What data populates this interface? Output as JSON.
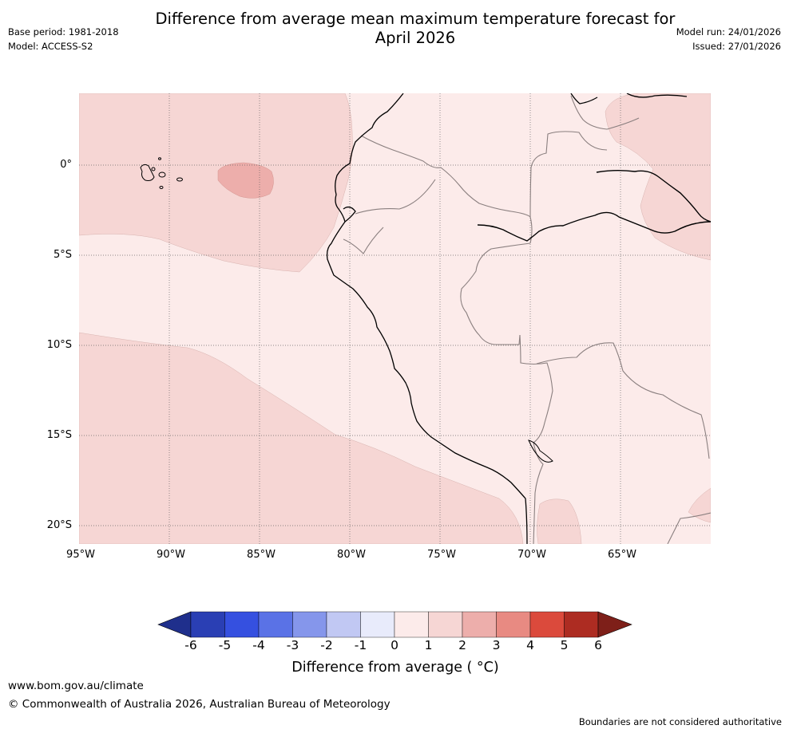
{
  "header": {
    "title_line1": "Difference from average mean maximum temperature forecast for",
    "title_line2": "April 2026",
    "base_period": "Base period: 1981-2018",
    "model": "Model: ACCESS-S2",
    "model_run": "Model run: 24/01/2026",
    "issued": "Issued: 27/01/2026"
  },
  "map": {
    "lat_labels": [
      "0°",
      "5°S",
      "10°S",
      "15°S",
      "20°S"
    ],
    "lon_labels": [
      "95°W",
      "90°W",
      "85°W",
      "80°W",
      "75°W",
      "70°W",
      "65°W"
    ],
    "colors": {
      "anomaly_0_1": "#fcebea",
      "anomaly_1_2": "#f6d6d4",
      "anomaly_2_3": "#edaeab",
      "coast": "#000000",
      "border": "#8a7f7f",
      "grid": "#666666"
    }
  },
  "colorbar": {
    "ticks": [
      "-6",
      "-5",
      "-4",
      "-3",
      "-2",
      "-1",
      "0",
      "1",
      "2",
      "3",
      "4",
      "5",
      "6"
    ],
    "colors": [
      "#1f2f8c",
      "#2a3fb4",
      "#3550e0",
      "#5a72e6",
      "#8596eb",
      "#c1c8f3",
      "#e8ebfb",
      "#fcebea",
      "#f6d6d4",
      "#edaeab",
      "#e88a82",
      "#db4a3c",
      "#ad2c22",
      "#7e1f19"
    ],
    "label": "Difference from average ( °C)"
  },
  "footer": {
    "website": "www.bom.gov.au/climate",
    "copyright": "© Commonwealth of Australia 2026, Australian Bureau of Meteorology",
    "disclaimer": "Boundaries are not considered authoritative"
  }
}
